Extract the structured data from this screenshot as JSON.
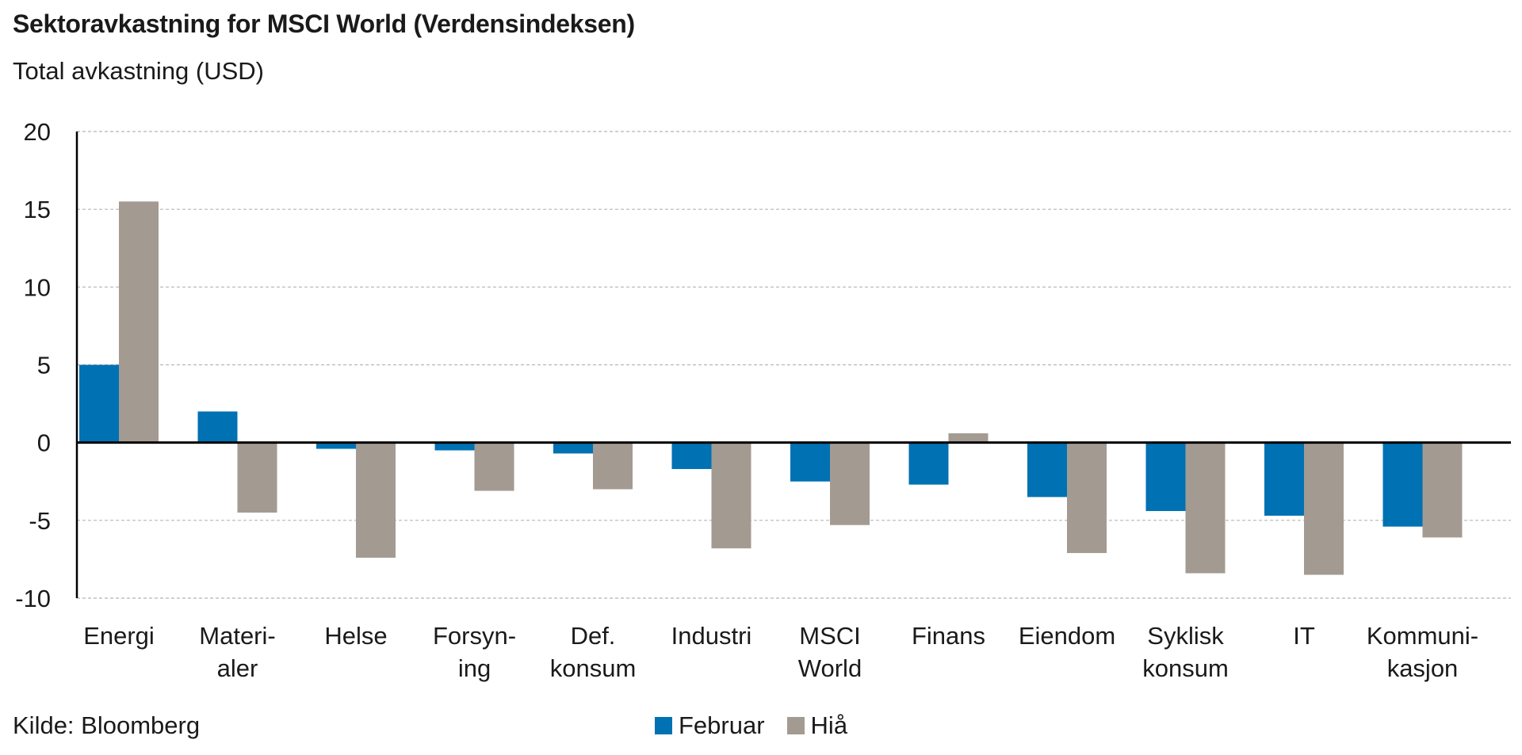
{
  "title": "Sektoravkastning for MSCI World (Verdensindeksen)",
  "subtitle": "Total avkastning (USD)",
  "source": "Kilde: Bloomberg",
  "colors": {
    "februar": "#0071b3",
    "hia": "#a39a92",
    "grid": "#b5b5b5",
    "axis": "#000000"
  },
  "chart_data": {
    "type": "bar",
    "categories": [
      [
        "Energi"
      ],
      [
        "Materi-",
        "aler"
      ],
      [
        "Helse"
      ],
      [
        "Forsyn-",
        "ing"
      ],
      [
        "Def.",
        "konsum"
      ],
      [
        "Industri"
      ],
      [
        "MSCI",
        "World"
      ],
      [
        "Finans"
      ],
      [
        "Eiendom"
      ],
      [
        "Syklisk",
        "konsum"
      ],
      [
        "IT"
      ],
      [
        "Kommuni-",
        "kasjon"
      ]
    ],
    "series": [
      {
        "name": "Februar",
        "values": [
          5.0,
          2.0,
          -0.4,
          -0.5,
          -0.7,
          -1.7,
          -2.5,
          -2.7,
          -3.5,
          -4.4,
          -4.7,
          -5.4
        ]
      },
      {
        "name": "Hiå",
        "values": [
          15.5,
          -4.5,
          -7.4,
          -3.1,
          -3.0,
          -6.8,
          -5.3,
          0.6,
          -7.1,
          -8.4,
          -8.5,
          -6.1
        ]
      }
    ],
    "ylim": [
      -10,
      20
    ],
    "yticks": [
      20,
      15,
      10,
      5,
      0,
      -5,
      -10
    ],
    "grid": true,
    "legend": "bottom-center"
  }
}
